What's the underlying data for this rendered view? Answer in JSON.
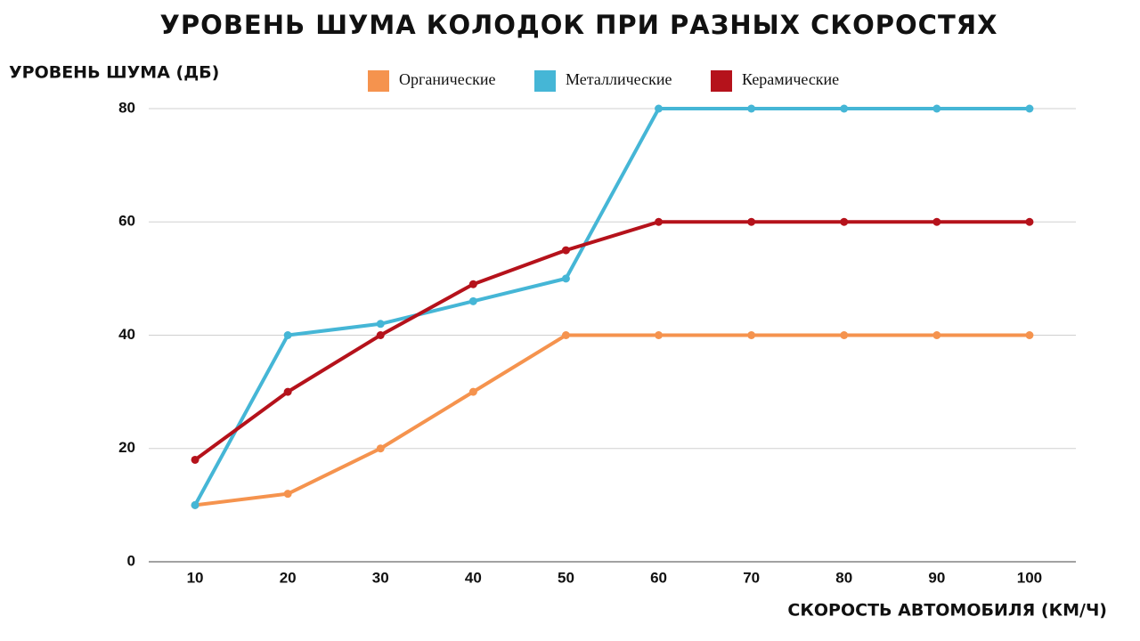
{
  "chart_data": {
    "type": "line",
    "title": "УРОВЕНЬ ШУМА КОЛОДОК ПРИ РАЗНЫХ СКОРОСТЯХ",
    "y_label": "УРОВЕНЬ ШУМА (ДБ)",
    "x_label": "СКОРОСТЬ АВТОМОБИЛЯ (КМ/Ч)",
    "x": [
      10,
      20,
      30,
      40,
      50,
      60,
      70,
      80,
      90,
      100
    ],
    "xlim": [
      5,
      105
    ],
    "xticks": [
      10,
      20,
      30,
      40,
      50,
      60,
      70,
      80,
      90,
      100
    ],
    "ylim": [
      0,
      80
    ],
    "yticks": [
      0,
      20,
      40,
      60,
      80
    ],
    "grid": true,
    "series": [
      {
        "name": "Органические",
        "color": "#f5934e",
        "values": [
          10,
          12,
          20,
          30,
          40,
          40,
          40,
          40,
          40,
          40
        ]
      },
      {
        "name": "Металлические",
        "color": "#45b6d6",
        "values": [
          10,
          40,
          42,
          46,
          50,
          80,
          80,
          80,
          80,
          80
        ]
      },
      {
        "name": "Керамические",
        "color": "#b5121b",
        "values": [
          18,
          30,
          40,
          49,
          55,
          60,
          60,
          60,
          60,
          60
        ]
      }
    ]
  }
}
